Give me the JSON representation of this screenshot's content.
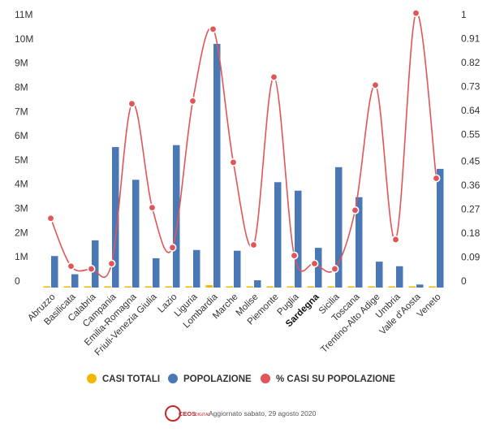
{
  "chart_data": {
    "type": "bar",
    "title": "",
    "xlabel": "",
    "ylabel": "",
    "categories": [
      "Abruzzo",
      "Basilicata",
      "Calabria",
      "Campania",
      "Emilia-Romagna",
      "Friuli-Venezia Giulia",
      "Lazio",
      "Liguria",
      "Lombardia",
      "Marche",
      "Molise",
      "Piemonte",
      "Puglia",
      "Sardegna",
      "Sicilia",
      "Toscana",
      "Trentino-Alto Adige",
      "Umbria",
      "Valle d'Aosta",
      "Veneto"
    ],
    "highlighted_category": "Sardegna",
    "ylim": [
      0,
      11000000
    ],
    "y_ticks": [
      {
        "value": 0,
        "label": "0"
      },
      {
        "value": 1000000,
        "label": "1M"
      },
      {
        "value": 2000000,
        "label": "2M"
      },
      {
        "value": 3000000,
        "label": "3M"
      },
      {
        "value": 4000000,
        "label": "4M"
      },
      {
        "value": 5000000,
        "label": "5M"
      },
      {
        "value": 6000000,
        "label": "6M"
      },
      {
        "value": 7000000,
        "label": "7M"
      },
      {
        "value": 8000000,
        "label": "8M"
      },
      {
        "value": 9000000,
        "label": "9M"
      },
      {
        "value": 10000000,
        "label": "10M"
      },
      {
        "value": 11000000,
        "label": "11M"
      }
    ],
    "y2lim": [
      0,
      1
    ],
    "y2_ticks": [
      {
        "value": 0,
        "label": "0"
      },
      {
        "value": 0.09,
        "label": "0.09"
      },
      {
        "value": 0.18,
        "label": "0.18"
      },
      {
        "value": 0.27,
        "label": "0.27"
      },
      {
        "value": 0.36,
        "label": "0.36"
      },
      {
        "value": 0.45,
        "label": "0.45"
      },
      {
        "value": 0.55,
        "label": "0.55"
      },
      {
        "value": 0.64,
        "label": "0.64"
      },
      {
        "value": 0.73,
        "label": "0.73"
      },
      {
        "value": 0.82,
        "label": "0.82"
      },
      {
        "value": 0.91,
        "label": "0.91"
      },
      {
        "value": 1,
        "label": "1"
      }
    ],
    "series": [
      {
        "name": "CASI TOTALI",
        "type": "bar",
        "axis": "left",
        "color": "#f2b705",
        "values": [
          3400,
          500,
          1300,
          5900,
          30500,
          3600,
          10800,
          10900,
          98000,
          7200,
          500,
          32200,
          5000,
          1900,
          3900,
          11500,
          7300,
          1600,
          1200,
          20400
        ]
      },
      {
        "name": "POPOLAZIONE",
        "type": "bar",
        "axis": "left",
        "color": "#4a78b5",
        "values": [
          1300000,
          550000,
          1950000,
          5800000,
          4450000,
          1210000,
          5880000,
          1550000,
          10060000,
          1520000,
          300000,
          4350000,
          4000000,
          1640000,
          4970000,
          3730000,
          1070000,
          880000,
          125000,
          4900000
        ]
      },
      {
        "name": "% CASI SU POPOLAZIONE",
        "type": "line",
        "axis": "right",
        "color": "#e05558",
        "values": [
          0.26,
          0.08,
          0.07,
          0.09,
          0.69,
          0.3,
          0.15,
          0.7,
          0.97,
          0.47,
          0.16,
          0.79,
          0.12,
          0.09,
          0.07,
          0.29,
          0.76,
          0.18,
          1.03,
          0.41
        ]
      }
    ],
    "legend_position": "bottom",
    "grid": false
  },
  "footer": {
    "logo_text": "CEOS",
    "logo_sub": "DIGITAL",
    "updated": "Aggiornato sabato, 29 agosto 2020"
  }
}
